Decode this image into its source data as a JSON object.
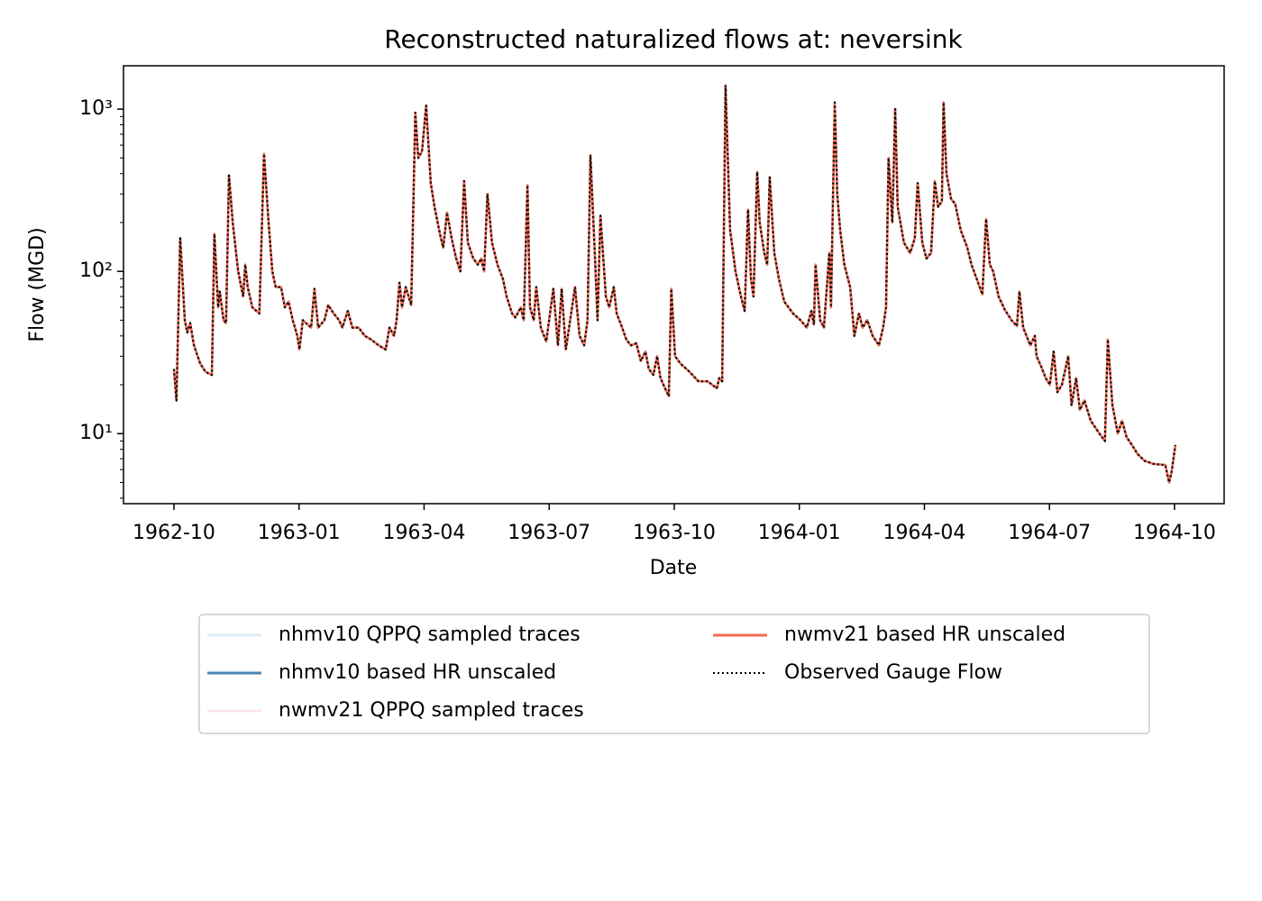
{
  "chart_data": {
    "type": "line",
    "title": "Reconstructed naturalized flows at: neversink",
    "x_label": "Date",
    "y_label": "Flow (MGD)",
    "y_scale": "log",
    "legend": "below",
    "legend_columns": 2,
    "xlim": [
      -1.21,
      25.19
    ],
    "xticks": [
      {
        "value": 0,
        "label": "1962-10"
      },
      {
        "value": 3,
        "label": "1963-01"
      },
      {
        "value": 6,
        "label": "1963-04"
      },
      {
        "value": 9,
        "label": "1963-07"
      },
      {
        "value": 12,
        "label": "1963-10"
      },
      {
        "value": 15,
        "label": "1964-01"
      },
      {
        "value": 18,
        "label": "1964-04"
      },
      {
        "value": 21,
        "label": "1964-07"
      },
      {
        "value": 24,
        "label": "1964-10"
      }
    ],
    "ylim": [
      3.7,
      1850
    ],
    "yticks": [
      {
        "value": 10,
        "label": "10¹"
      },
      {
        "value": 100,
        "label": "10²"
      },
      {
        "value": 1000,
        "label": "10³"
      }
    ],
    "yminorticks": [
      4,
      5,
      6,
      7,
      8,
      9,
      20,
      30,
      40,
      50,
      60,
      70,
      80,
      90,
      200,
      300,
      400,
      500,
      600,
      700,
      800,
      900
    ],
    "x": [
      0,
      0.06,
      0.15,
      0.26,
      0.32,
      0.39,
      0.48,
      0.63,
      0.76,
      0.91,
      0.97,
      1.06,
      1.1,
      1.19,
      1.25,
      1.32,
      1.41,
      1.54,
      1.66,
      1.71,
      1.77,
      1.88,
      2.05,
      2.16,
      2.27,
      2.36,
      2.44,
      2.57,
      2.66,
      2.75,
      2.85,
      2.96,
      3.01,
      3.09,
      3.29,
      3.37,
      3.46,
      3.61,
      3.7,
      3.83,
      3.96,
      4.04,
      4.17,
      4.28,
      4.43,
      4.58,
      4.73,
      4.91,
      5.08,
      5.17,
      5.28,
      5.34,
      5.41,
      5.47,
      5.56,
      5.69,
      5.79,
      5.86,
      5.95,
      6.05,
      6.16,
      6.25,
      6.38,
      6.46,
      6.55,
      6.66,
      6.77,
      6.87,
      6.96,
      7.05,
      7.18,
      7.29,
      7.37,
      7.44,
      7.52,
      7.63,
      7.76,
      7.89,
      7.98,
      8.11,
      8.19,
      8.32,
      8.39,
      8.48,
      8.54,
      8.63,
      8.69,
      8.8,
      8.93,
      9.1,
      9.21,
      9.3,
      9.4,
      9.62,
      9.73,
      9.84,
      9.92,
      9.99,
      10.1,
      10.16,
      10.23,
      10.36,
      10.44,
      10.55,
      10.62,
      10.75,
      10.85,
      10.96,
      11.09,
      11.2,
      11.31,
      11.39,
      11.5,
      11.59,
      11.67,
      11.78,
      11.87,
      11.93,
      12.02,
      12.15,
      12.37,
      12.58,
      12.8,
      12.91,
      13.02,
      13.08,
      13.15,
      13.23,
      13.34,
      13.47,
      13.6,
      13.69,
      13.77,
      13.84,
      13.9,
      13.99,
      14.05,
      14.16,
      14.23,
      14.29,
      14.4,
      14.51,
      14.64,
      14.85,
      15.03,
      15.18,
      15.29,
      15.35,
      15.39,
      15.5,
      15.59,
      15.72,
      15.76,
      15.85,
      15.91,
      15.98,
      16.08,
      16.22,
      16.32,
      16.43,
      16.52,
      16.63,
      16.76,
      16.91,
      17.01,
      17.08,
      17.14,
      17.23,
      17.3,
      17.36,
      17.51,
      17.66,
      17.77,
      17.84,
      17.95,
      18.05,
      18.16,
      18.25,
      18.33,
      18.42,
      18.46,
      18.53,
      18.64,
      18.74,
      18.87,
      19.03,
      19.13,
      19.29,
      19.39,
      19.48,
      19.57,
      19.65,
      19.78,
      19.93,
      20.09,
      20.22,
      20.28,
      20.37,
      20.54,
      20.65,
      20.69,
      20.8,
      20.91,
      21.01,
      21.1,
      21.19,
      21.3,
      21.45,
      21.53,
      21.64,
      21.73,
      21.84,
      21.99,
      22.2,
      22.33,
      22.4,
      22.51,
      22.64,
      22.74,
      22.85,
      22.98,
      23.11,
      23.28,
      23.5,
      23.78,
      23.87,
      23.93,
      24.02
    ],
    "series": [
      {
        "name": "nhmv10 QPPQ sampled traces",
        "color": "#d9ecf9"
      },
      {
        "name": "nhmv10 based HR unscaled",
        "color": "#4a86b5",
        "values": [
          25,
          16,
          160,
          50,
          42,
          48,
          35,
          27,
          24,
          23,
          170,
          60,
          75,
          50,
          48,
          390,
          200,
          100,
          70,
          110,
          80,
          60,
          55,
          530,
          200,
          100,
          80,
          80,
          60,
          65,
          50,
          40,
          33,
          50,
          45,
          78,
          45,
          50,
          62,
          55,
          50,
          45,
          57,
          45,
          45,
          40,
          38,
          35,
          33,
          45,
          40,
          50,
          85,
          60,
          80,
          62,
          950,
          500,
          550,
          1050,
          350,
          250,
          170,
          140,
          230,
          160,
          120,
          100,
          360,
          150,
          120,
          110,
          120,
          100,
          300,
          150,
          110,
          90,
          70,
          55,
          52,
          60,
          50,
          340,
          60,
          50,
          80,
          45,
          37,
          78,
          35,
          78,
          33,
          80,
          40,
          35,
          50,
          520,
          120,
          50,
          220,
          70,
          60,
          80,
          55,
          45,
          38,
          35,
          36,
          28,
          32,
          25,
          23,
          30,
          22,
          19,
          17,
          78,
          30,
          27,
          24,
          21,
          21,
          20,
          19,
          22,
          21,
          1400,
          180,
          100,
          70,
          57,
          240,
          90,
          70,
          410,
          200,
          130,
          110,
          380,
          130,
          90,
          65,
          55,
          50,
          45,
          57,
          47,
          110,
          50,
          45,
          130,
          60,
          1100,
          300,
          180,
          110,
          80,
          40,
          55,
          45,
          50,
          40,
          35,
          45,
          60,
          500,
          200,
          1000,
          250,
          150,
          130,
          160,
          350,
          150,
          120,
          130,
          360,
          250,
          270,
          1100,
          400,
          280,
          260,
          180,
          140,
          110,
          85,
          72,
          210,
          110,
          100,
          70,
          58,
          50,
          46,
          75,
          45,
          35,
          40,
          30,
          26,
          22,
          20,
          32,
          18,
          20,
          30,
          15,
          22,
          14,
          16,
          12,
          10,
          9,
          38,
          15,
          10,
          12,
          9.5,
          8.5,
          7.5,
          6.8,
          6.5,
          6.4,
          5,
          5.8,
          8.5
        ]
      },
      {
        "name": "nwmv21 QPPQ sampled traces",
        "color": "#fde3ec"
      },
      {
        "name": "nwmv21 based HR unscaled",
        "color": "#f26b50",
        "values": [
          25,
          16,
          160,
          50,
          42,
          48,
          35,
          27,
          24,
          23,
          170,
          60,
          75,
          50,
          48,
          390,
          200,
          100,
          70,
          110,
          80,
          60,
          55,
          530,
          200,
          100,
          80,
          80,
          60,
          65,
          50,
          40,
          33,
          50,
          45,
          78,
          45,
          50,
          62,
          55,
          50,
          45,
          57,
          45,
          45,
          40,
          38,
          35,
          33,
          45,
          40,
          50,
          85,
          60,
          80,
          62,
          950,
          500,
          550,
          1050,
          350,
          250,
          170,
          140,
          230,
          160,
          120,
          100,
          360,
          150,
          120,
          110,
          120,
          100,
          300,
          150,
          110,
          90,
          70,
          55,
          52,
          60,
          50,
          340,
          60,
          50,
          80,
          45,
          37,
          78,
          35,
          78,
          33,
          80,
          40,
          35,
          50,
          520,
          120,
          50,
          220,
          70,
          60,
          80,
          55,
          45,
          38,
          35,
          36,
          28,
          32,
          25,
          23,
          30,
          22,
          19,
          17,
          78,
          30,
          27,
          24,
          21,
          21,
          20,
          19,
          22,
          21,
          1400,
          180,
          100,
          70,
          57,
          240,
          90,
          70,
          410,
          200,
          130,
          110,
          380,
          130,
          90,
          65,
          55,
          50,
          45,
          57,
          47,
          110,
          50,
          45,
          130,
          60,
          1100,
          300,
          180,
          110,
          80,
          40,
          55,
          45,
          50,
          40,
          35,
          45,
          60,
          500,
          200,
          1000,
          250,
          150,
          130,
          160,
          350,
          150,
          120,
          130,
          360,
          250,
          270,
          1100,
          400,
          280,
          260,
          180,
          140,
          110,
          85,
          72,
          210,
          110,
          100,
          70,
          58,
          50,
          46,
          75,
          45,
          35,
          40,
          30,
          26,
          22,
          20,
          32,
          18,
          20,
          30,
          15,
          22,
          14,
          16,
          12,
          10,
          9,
          38,
          15,
          10,
          12,
          9.5,
          8.5,
          7.5,
          6.8,
          6.5,
          6.4,
          5,
          5.8,
          8.5
        ]
      },
      {
        "name": "Observed Gauge Flow",
        "color": "#000000",
        "dash": "dotted",
        "values": [
          25,
          16,
          160,
          50,
          42,
          48,
          35,
          27,
          24,
          23,
          170,
          60,
          75,
          50,
          48,
          390,
          200,
          100,
          70,
          110,
          80,
          60,
          55,
          530,
          200,
          100,
          80,
          80,
          60,
          65,
          50,
          40,
          33,
          50,
          45,
          78,
          45,
          50,
          62,
          55,
          50,
          45,
          57,
          45,
          45,
          40,
          38,
          35,
          33,
          45,
          40,
          50,
          85,
          60,
          80,
          62,
          950,
          500,
          550,
          1050,
          350,
          250,
          170,
          140,
          230,
          160,
          120,
          100,
          360,
          150,
          120,
          110,
          120,
          100,
          300,
          150,
          110,
          90,
          70,
          55,
          52,
          60,
          50,
          340,
          60,
          50,
          80,
          45,
          37,
          78,
          35,
          78,
          33,
          80,
          40,
          35,
          50,
          520,
          120,
          50,
          220,
          70,
          60,
          80,
          55,
          45,
          38,
          35,
          36,
          28,
          32,
          25,
          23,
          30,
          22,
          19,
          17,
          78,
          30,
          27,
          24,
          21,
          21,
          20,
          19,
          22,
          21,
          1400,
          180,
          100,
          70,
          57,
          240,
          90,
          70,
          410,
          200,
          130,
          110,
          380,
          130,
          90,
          65,
          55,
          50,
          45,
          57,
          47,
          110,
          50,
          45,
          130,
          60,
          1100,
          300,
          180,
          110,
          80,
          40,
          55,
          45,
          50,
          40,
          35,
          45,
          60,
          500,
          200,
          1000,
          250,
          150,
          130,
          160,
          350,
          150,
          120,
          130,
          360,
          250,
          270,
          1100,
          400,
          280,
          260,
          180,
          140,
          110,
          85,
          72,
          210,
          110,
          100,
          70,
          58,
          50,
          46,
          75,
          45,
          35,
          40,
          30,
          26,
          22,
          20,
          32,
          18,
          20,
          30,
          15,
          22,
          14,
          16,
          12,
          10,
          9,
          38,
          15,
          10,
          12,
          9.5,
          8.5,
          7.5,
          6.8,
          6.5,
          6.4,
          5,
          5.8,
          8.5
        ]
      }
    ]
  }
}
